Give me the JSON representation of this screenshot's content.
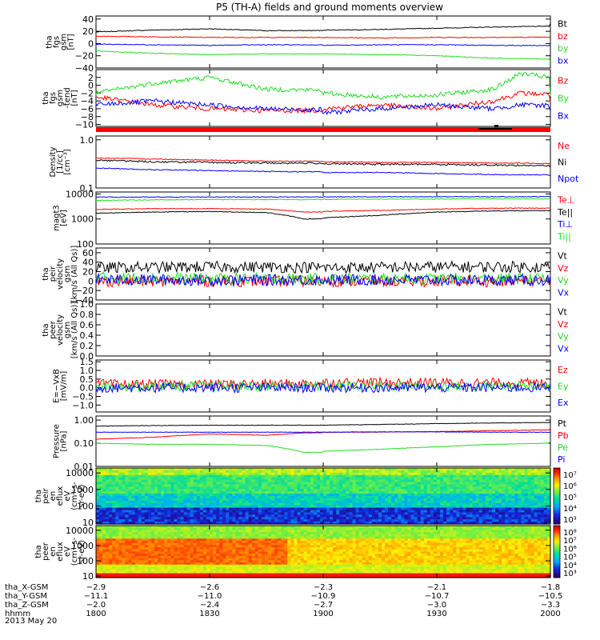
{
  "title": "P5 (TH-A) fields and ground moments overview",
  "colors": {
    "black": "#000000",
    "red": "#ff0000",
    "green": "#22dd22",
    "blue": "#0000ff"
  },
  "chart_data": [
    {
      "type": "line",
      "name": "fgs_gsm",
      "ylabel": [
        "tha",
        "fgs",
        "gsm",
        "[nT]"
      ],
      "ylim": [
        -40,
        45
      ],
      "yticks": [
        40,
        20,
        0,
        -20,
        -40
      ],
      "ytick_labels": [
        "40",
        "20",
        "0",
        "−20",
        "−40"
      ],
      "x": [
        1800,
        1815,
        1830,
        1845,
        1900,
        1915,
        1930,
        1945,
        2000
      ],
      "series": [
        {
          "name": "Bt",
          "color": "#000000",
          "values": [
            19,
            22,
            24,
            21,
            22,
            23,
            25,
            27,
            32
          ]
        },
        {
          "name": "bz",
          "color": "#ff0000",
          "values": [
            12,
            11,
            10,
            10,
            10,
            9,
            10,
            10,
            11
          ]
        },
        {
          "name": "by",
          "color": "#22dd22",
          "values": [
            -12,
            -16,
            -18,
            -17,
            -17,
            -18,
            -20,
            -24,
            -29
          ]
        },
        {
          "name": "bx",
          "color": "#0000ff",
          "values": [
            -1,
            -2,
            -3,
            -2,
            -3,
            -2,
            -2,
            -3,
            -4
          ]
        }
      ]
    },
    {
      "type": "line",
      "name": "fgs_gsm_dtrend",
      "ylabel": [
        "tha",
        "fgs",
        "gsm",
        "-tend",
        "[nT]"
      ],
      "ylim": [
        -10.5,
        4
      ],
      "yticks": [
        2,
        0,
        -2,
        -4,
        -6,
        -8,
        -10
      ],
      "ytick_labels": [
        "2",
        "0",
        "−2",
        "−4",
        "−6",
        "−8",
        "−10"
      ],
      "x": [
        1800,
        1815,
        1830,
        1845,
        1900,
        1915,
        1930,
        1945,
        1952,
        2000
      ],
      "series": [
        {
          "name": "Bz",
          "color": "#ff0000",
          "values": [
            -3,
            -5,
            -6,
            -6.5,
            -6,
            -5,
            -6,
            -4,
            -2,
            -4
          ]
        },
        {
          "name": "By",
          "color": "#22dd22",
          "values": [
            -2,
            0.5,
            2,
            -1,
            -2,
            -3,
            -2.5,
            -1,
            3,
            -3
          ]
        },
        {
          "name": "Bx",
          "color": "#0000ff",
          "values": [
            -5,
            -4,
            -5,
            -6,
            -7,
            -6,
            -5,
            -6,
            -5,
            -6
          ]
        }
      ]
    },
    {
      "type": "line",
      "name": "density",
      "ylabel": [
        "Density",
        "[1/cc]",
        "[cm⁻³]"
      ],
      "scale": "log",
      "ylim": [
        0.1,
        1.2
      ],
      "yticks": [
        1.0,
        0.1
      ],
      "ytick_labels": [
        "1.0",
        "0.1"
      ],
      "x": [
        1800,
        1815,
        1830,
        1845,
        1900,
        1915,
        1930,
        1945,
        2000
      ],
      "series": [
        {
          "name": "Ne",
          "color": "#ff0000",
          "values": [
            0.42,
            0.4,
            0.38,
            0.36,
            0.35,
            0.34,
            0.34,
            0.33,
            0.31
          ]
        },
        {
          "name": "Ni",
          "color": "#000000",
          "values": [
            0.38,
            0.35,
            0.34,
            0.33,
            0.32,
            0.31,
            0.31,
            0.3,
            0.26
          ]
        },
        {
          "name": "Npot",
          "color": "#0000ff",
          "values": [
            0.26,
            0.24,
            0.23,
            0.22,
            0.21,
            0.21,
            0.2,
            0.19,
            0.18
          ]
        }
      ]
    },
    {
      "type": "line",
      "name": "temperature",
      "ylabel": [
        "magt3",
        "[eV]"
      ],
      "scale": "log",
      "ylim": [
        100,
        12000
      ],
      "yticks": [
        10000,
        1000,
        100
      ],
      "ytick_labels": [
        "10000",
        "1000",
        "100"
      ],
      "x": [
        1800,
        1815,
        1830,
        1845,
        1855,
        1900,
        1915,
        1930,
        1945,
        2000
      ],
      "series": [
        {
          "name": "Te⊥",
          "color": "#ff0000",
          "values": [
            2400,
            2600,
            2600,
            2500,
            1900,
            2000,
            2200,
            2500,
            2700,
            2800
          ]
        },
        {
          "name": "Te||",
          "color": "#000000",
          "values": [
            1700,
            1900,
            2000,
            1800,
            1000,
            1100,
            1400,
            1900,
            2100,
            2300
          ]
        },
        {
          "name": "Ti⊥",
          "color": "#0000ff",
          "values": [
            7500,
            7500,
            7600,
            7600,
            7600,
            7700,
            7700,
            7800,
            7800,
            7900
          ]
        },
        {
          "name": "Ti||",
          "color": "#22dd22",
          "values": [
            5600,
            5800,
            6000,
            6000,
            6000,
            6100,
            6200,
            6300,
            6400,
            6400
          ]
        }
      ]
    },
    {
      "type": "line",
      "name": "peir_velocity",
      "ylabel": [
        "tha",
        "peir",
        "velocity",
        "gsm",
        "[km/s (All Qs)]"
      ],
      "ylim": [
        -40,
        70
      ],
      "yticks": [
        60,
        40,
        20,
        0,
        -20,
        -40
      ],
      "ytick_labels": [
        "60",
        "40",
        "20",
        "0",
        "−20",
        "−40"
      ],
      "x": [
        1800,
        1830,
        1900,
        1930,
        2000
      ],
      "series": [
        {
          "name": "Vt",
          "color": "#000000",
          "values": [
            28,
            30,
            28,
            30,
            30
          ]
        },
        {
          "name": "Vz",
          "color": "#ff0000",
          "values": [
            0,
            0,
            0,
            0,
            0
          ]
        },
        {
          "name": "Vy",
          "color": "#22dd22",
          "values": [
            8,
            5,
            5,
            5,
            5
          ]
        },
        {
          "name": "Vx",
          "color": "#0000ff",
          "values": [
            3,
            2,
            3,
            2,
            2
          ]
        }
      ]
    },
    {
      "type": "line",
      "name": "peer_velocity",
      "ylabel": [
        "tha",
        "peer",
        "velocity",
        "gsm",
        "[km/s (All Qs)]"
      ],
      "ylim": [
        0,
        1.0
      ],
      "yticks": [
        1.0,
        0.8,
        0.6,
        0.4,
        0.2,
        0.0
      ],
      "ytick_labels": [
        "1.0",
        "0.8",
        "0.6",
        "0.4",
        "0.2",
        "0.0"
      ],
      "series": [
        {
          "name": "Vt",
          "color": "#000000"
        },
        {
          "name": "Vz",
          "color": "#ff0000"
        },
        {
          "name": "Vy",
          "color": "#22dd22"
        },
        {
          "name": "Vx",
          "color": "#0000ff"
        }
      ]
    },
    {
      "type": "line",
      "name": "efield",
      "ylabel": [
        "E=−VxB",
        "[mV/m]"
      ],
      "ylim": [
        -1.4,
        1.6
      ],
      "yticks": [
        1.5,
        1.0,
        0.5,
        0.0,
        -0.5,
        -1.0
      ],
      "ytick_labels": [
        "1.5",
        "1.0",
        "0.5",
        "0.0",
        "−0.5",
        "−1.0"
      ],
      "x": [
        1800,
        1830,
        1900,
        1930,
        2000
      ],
      "series": [
        {
          "name": "Ez",
          "color": "#ff0000",
          "values": [
            0.2,
            0.2,
            0.3,
            0.3,
            0.2
          ]
        },
        {
          "name": "Ey",
          "color": "#22dd22",
          "values": [
            0.1,
            0.1,
            0.1,
            0.1,
            0.1
          ]
        },
        {
          "name": "Ex",
          "color": "#0000ff",
          "values": [
            0,
            0,
            0,
            0,
            0
          ]
        }
      ]
    },
    {
      "type": "line",
      "name": "pressure",
      "ylabel": [
        "Pressure",
        "[nPa]"
      ],
      "scale": "log",
      "ylim": [
        0.01,
        1.5
      ],
      "yticks": [
        1.0,
        0.1,
        0.01
      ],
      "ytick_labels": [
        "1.00",
        "0.10",
        "0.01"
      ],
      "x": [
        1800,
        1815,
        1830,
        1845,
        1855,
        1900,
        1915,
        1930,
        1945,
        2000
      ],
      "series": [
        {
          "name": "Pt",
          "color": "#000000",
          "values": [
            0.55,
            0.58,
            0.6,
            0.6,
            0.6,
            0.6,
            0.65,
            0.7,
            0.75,
            0.9
          ]
        },
        {
          "name": "Pb",
          "color": "#ff0000",
          "values": [
            0.15,
            0.18,
            0.25,
            0.22,
            0.28,
            0.3,
            0.3,
            0.32,
            0.35,
            0.45
          ]
        },
        {
          "name": "Pe",
          "color": "#22dd22",
          "values": [
            0.1,
            0.09,
            0.09,
            0.08,
            0.04,
            0.045,
            0.055,
            0.07,
            0.09,
            0.13
          ]
        },
        {
          "name": "Pi",
          "color": "#0000ff",
          "values": [
            0.3,
            0.3,
            0.3,
            0.3,
            0.3,
            0.3,
            0.31,
            0.31,
            0.3,
            0.3
          ]
        }
      ]
    },
    {
      "type": "heatmap",
      "name": "peir_en_eflux",
      "ylabel": [
        "tha",
        "peir",
        "en",
        "eflux",
        "eV",
        "(cm²-s-",
        "sr-eV)"
      ],
      "scale": "log",
      "ylim": [
        8,
        20000
      ],
      "yticks": [
        10000,
        1000,
        100,
        10
      ],
      "ytick_labels": [
        "10000",
        "1000",
        "100",
        "10"
      ],
      "colorbar": {
        "ticks": [
          "10⁷",
          "10⁶",
          "10⁵",
          "10⁴",
          "10³"
        ]
      }
    },
    {
      "type": "heatmap",
      "name": "peer_en_eflux",
      "ylabel": [
        "tha",
        "peer",
        "en",
        "eflux",
        "eV",
        "(cm²-s-",
        "sr-eV)"
      ],
      "scale": "log",
      "ylim": [
        8,
        20000
      ],
      "yticks": [
        10000,
        1000,
        100,
        10
      ],
      "ytick_labels": [
        "10000",
        "1000",
        "100",
        "10"
      ],
      "colorbar": {
        "ticks": [
          "10⁸",
          "10⁷",
          "10⁶",
          "10⁵",
          "10⁴",
          "10³"
        ]
      }
    }
  ],
  "xaxis": {
    "ticks": [
      1800,
      1830,
      1900,
      1930,
      2000
    ],
    "rows": [
      {
        "label": "tha_X-GSM",
        "values": [
          "−2.9",
          "−2.6",
          "−2.3",
          "−2.1",
          "−1.8"
        ]
      },
      {
        "label": "tha_Y-GSM",
        "values": [
          "−11.1",
          "−11.0",
          "−10.9",
          "−10.7",
          "−10.5"
        ]
      },
      {
        "label": "tha_Z-GSM",
        "values": [
          "−2.0",
          "−2.4",
          "−2.7",
          "−3.0",
          "−3.3"
        ]
      },
      {
        "label": "hhmm",
        "values": [
          "1800",
          "1830",
          "1900",
          "1930",
          "2000"
        ]
      }
    ],
    "date": "2013 May 20"
  }
}
